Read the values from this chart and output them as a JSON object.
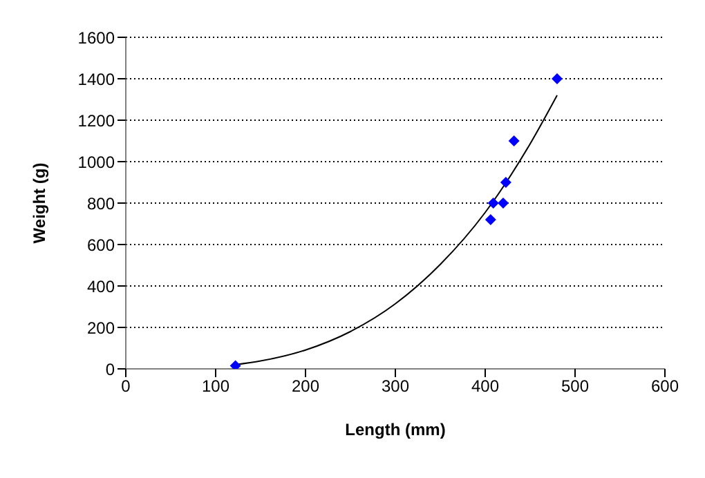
{
  "chart_data": {
    "type": "scatter",
    "xlabel": "Length (mm)",
    "ylabel": "Weight (g)",
    "xlim": [
      0,
      600
    ],
    "xticks": [
      0,
      100,
      200,
      300,
      400,
      500,
      600
    ],
    "ylim": [
      0,
      1600
    ],
    "yticks": [
      0,
      200,
      400,
      600,
      800,
      1000,
      1200,
      1400,
      1600
    ],
    "grid": "y",
    "legend": false,
    "series": [
      {
        "color": "#0000ff",
        "marker": "diamond",
        "x": [
          122,
          406,
          409,
          420,
          423,
          432,
          480
        ],
        "values": [
          15,
          720,
          800,
          800,
          900,
          1100,
          1400
        ]
      },
      {
        "type": "line",
        "color": "#000000",
        "marker": "none",
        "line_style": "solid",
        "x": [
          122,
          150,
          200,
          250,
          300,
          350,
          400,
          450,
          480
        ],
        "values": [
          20,
          38,
          91,
          180,
          314,
          504,
          755,
          1086,
          1320
        ]
      }
    ]
  }
}
